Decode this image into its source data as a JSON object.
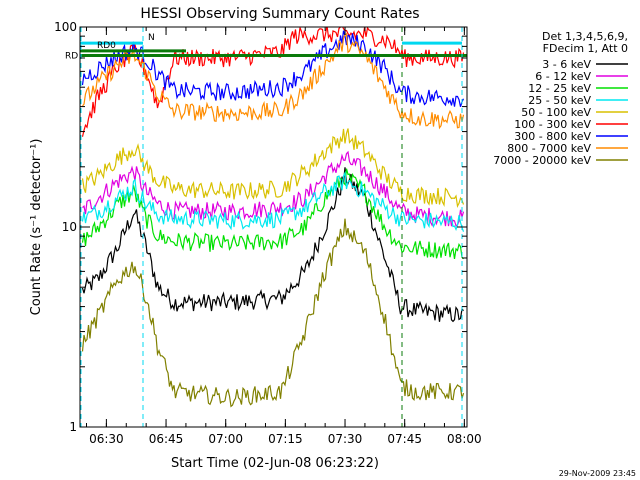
{
  "chart_data": {
    "type": "line",
    "title": "HESSI Observing Summary Count Rates",
    "xlabel": "Start Time (02-Jun-08 06:23:22)",
    "ylabel": "Count Rate (s⁻¹ detector⁻¹)",
    "yscale": "log",
    "ylim": [
      1,
      100
    ],
    "xlim": [
      "06:23:22",
      "08:00:40"
    ],
    "x_ticks": [
      "06:30",
      "06:45",
      "07:00",
      "07:15",
      "07:30",
      "07:45",
      "08:00"
    ],
    "y_ticks": [
      "1",
      "10",
      "100"
    ],
    "footer": "29-Nov-2009 23:45",
    "legend": {
      "header1": "Det 1,3,4,5,6,9,",
      "header2": "FDecim 1, Att 0"
    },
    "flags": [
      {
        "label": "RD0",
        "color": "#0a7a0a"
      },
      {
        "label": "RD",
        "color": "#0a7a0a"
      },
      {
        "label": "N",
        "color": "#00d8f0"
      }
    ],
    "series": [
      {
        "name": "3 - 6 keV",
        "color": "#000000",
        "x": [
          "06:24:00",
          "06:28:00",
          "06:33:00",
          "06:37:00",
          "06:40:00",
          "06:43:00",
          "06:47:00",
          "07:02:00",
          "07:14:00",
          "07:20:00",
          "07:25:00",
          "07:30:00",
          "07:35:00",
          "07:40:00",
          "07:44:00",
          "07:48:00",
          "08:00:00"
        ],
        "y": [
          4.8,
          5.5,
          8,
          12,
          8,
          5,
          4.2,
          4.2,
          4.4,
          6,
          10,
          18,
          14,
          7,
          4,
          3.8,
          3.6
        ]
      },
      {
        "name": "6 - 12 keV",
        "color": "#e000e0",
        "x": [
          "06:24:00",
          "06:28:00",
          "06:33:00",
          "06:37:00",
          "06:40:00",
          "06:43:00",
          "06:47:00",
          "07:02:00",
          "07:14:00",
          "07:20:00",
          "07:25:00",
          "07:30:00",
          "07:35:00",
          "07:40:00",
          "07:44:00",
          "07:48:00",
          "08:00:00"
        ],
        "y": [
          12,
          14,
          17,
          19,
          15,
          13,
          12,
          12,
          12.5,
          14,
          18,
          22,
          19,
          15,
          12,
          11.5,
          11
        ]
      },
      {
        "name": "12 - 25 keV",
        "color": "#00e000",
        "x": [
          "06:24:00",
          "06:28:00",
          "06:33:00",
          "06:37:00",
          "06:40:00",
          "06:43:00",
          "06:47:00",
          "07:02:00",
          "07:14:00",
          "07:20:00",
          "07:25:00",
          "07:30:00",
          "07:35:00",
          "07:40:00",
          "07:44:00",
          "07:48:00",
          "08:00:00"
        ],
        "y": [
          8.5,
          10,
          13,
          15,
          11,
          9,
          8.5,
          8.2,
          8.5,
          10,
          14,
          18,
          15,
          10,
          8,
          7.8,
          7.6
        ]
      },
      {
        "name": "25 - 50 keV",
        "color": "#00e8f0",
        "x": [
          "06:24:00",
          "06:28:00",
          "06:33:00",
          "06:37:00",
          "06:40:00",
          "06:43:00",
          "06:47:00",
          "07:02:00",
          "07:14:00",
          "07:20:00",
          "07:25:00",
          "07:30:00",
          "07:35:00",
          "07:40:00",
          "07:44:00",
          "07:48:00",
          "08:00:00"
        ],
        "y": [
          11,
          12,
          14,
          16,
          13,
          11.5,
          11,
          10.8,
          11,
          12.5,
          15,
          17,
          15,
          12.5,
          11,
          10.8,
          10.5
        ]
      },
      {
        "name": "50 - 100 keV",
        "color": "#d8c000",
        "x": [
          "06:24:00",
          "06:28:00",
          "06:33:00",
          "06:37:00",
          "06:40:00",
          "06:43:00",
          "06:47:00",
          "07:02:00",
          "07:14:00",
          "07:20:00",
          "07:25:00",
          "07:30:00",
          "07:35:00",
          "07:40:00",
          "07:44:00",
          "07:48:00",
          "08:00:00"
        ],
        "y": [
          16,
          18,
          22,
          25,
          20,
          17,
          15.5,
          15,
          15.5,
          19,
          24,
          29,
          24,
          18,
          15,
          14.5,
          14
        ]
      },
      {
        "name": "100 - 300 keV",
        "color": "#ff0000",
        "x": [
          "06:24:00",
          "06:28:00",
          "06:33:00",
          "06:37:00",
          "06:40:00",
          "06:43:00",
          "06:47:00",
          "07:02:00",
          "07:14:00",
          "07:17:00",
          "07:25:00",
          "07:30:00",
          "07:35:00",
          "07:41:00",
          "07:45:00",
          "07:50:00",
          "08:00:00"
        ],
        "y": [
          30,
          45,
          65,
          75,
          60,
          40,
          70,
          70,
          75,
          90,
          92,
          92,
          92,
          85,
          70,
          70,
          70
        ]
      },
      {
        "name": "300 - 800 keV",
        "color": "#0000ff",
        "x": [
          "06:24:00",
          "06:28:00",
          "06:33:00",
          "06:37:00",
          "06:40:00",
          "06:43:00",
          "06:47:00",
          "07:02:00",
          "07:14:00",
          "07:20:00",
          "07:25:00",
          "07:30:00",
          "07:35:00",
          "07:40:00",
          "07:44:00",
          "07:48:00",
          "08:00:00"
        ],
        "y": [
          55,
          62,
          72,
          78,
          70,
          58,
          48,
          47,
          50,
          60,
          75,
          88,
          80,
          62,
          47,
          45,
          44
        ]
      },
      {
        "name": "800 - 7000 keV",
        "color": "#ff8c00",
        "x": [
          "06:24:00",
          "06:28:00",
          "06:33:00",
          "06:37:00",
          "06:40:00",
          "06:43:00",
          "06:47:00",
          "07:02:00",
          "07:14:00",
          "07:20:00",
          "07:25:00",
          "07:30:00",
          "07:35:00",
          "07:40:00",
          "07:44:00",
          "07:48:00",
          "08:00:00"
        ],
        "y": [
          42,
          52,
          65,
          72,
          60,
          46,
          38,
          37,
          38,
          48,
          65,
          85,
          72,
          50,
          38,
          35,
          34
        ]
      },
      {
        "name": "7000 - 20000 keV",
        "color": "#808000",
        "x": [
          "06:24:00",
          "06:28:00",
          "06:33:00",
          "06:37:00",
          "06:40:00",
          "06:43:00",
          "06:47:00",
          "07:02:00",
          "07:14:00",
          "07:20:00",
          "07:25:00",
          "07:30:00",
          "07:35:00",
          "07:40:00",
          "07:44:00",
          "07:48:00",
          "08:00:00"
        ],
        "y": [
          2.6,
          3.6,
          5.5,
          6.5,
          4.5,
          2.5,
          1.5,
          1.4,
          1.5,
          3,
          6,
          10,
          7.5,
          3.5,
          1.6,
          1.5,
          1.5
        ]
      }
    ]
  }
}
